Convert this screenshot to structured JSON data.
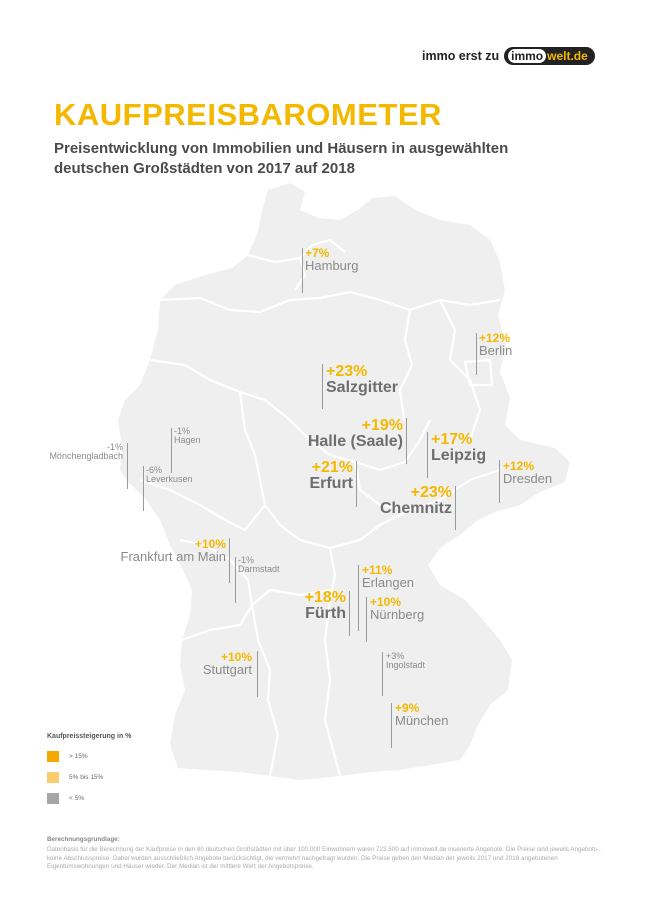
{
  "brand": {
    "prefix": "immo erst zu",
    "logo_a": "immo",
    "logo_b": "welt.de"
  },
  "title": "KAUFPREISBAROMETER",
  "subtitle": "Preisentwicklung von Immobilien und Häusern in ausgewählten deutschen Großstädten von 2017 auf 2018",
  "colors": {
    "high": "#f5a800",
    "mid": "#f9cd6d",
    "low": "#a6a6a6",
    "map": "#efefef",
    "border": "#ffffff"
  },
  "cities": {
    "hamburg": {
      "pct": "+7%",
      "name": "Hamburg"
    },
    "berlin": {
      "pct": "+12%",
      "name": "Berlin"
    },
    "salzgitter": {
      "pct": "+23%",
      "name": "Salzgitter"
    },
    "halle": {
      "pct": "+19%",
      "name": "Halle (Saale)"
    },
    "leipzig": {
      "pct": "+17%",
      "name": "Leipzig"
    },
    "dresden": {
      "pct": "+12%",
      "name": "Dresden"
    },
    "erfurt": {
      "pct": "+21%",
      "name": "Erfurt"
    },
    "chemnitz": {
      "pct": "+23%",
      "name": "Chemnitz"
    },
    "moenchengladbach": {
      "pct": "-1%",
      "name": "Mönchengladbach"
    },
    "hagen": {
      "pct": "-1%",
      "name": "Hagen"
    },
    "leverkusen": {
      "pct": "-6%",
      "name": "Leverkusen"
    },
    "frankfurt": {
      "pct": "+10%",
      "name": "Frankfurt am Main"
    },
    "darmstadt": {
      "pct": "-1%",
      "name": "Darmstadt"
    },
    "erlangen": {
      "pct": "+11%",
      "name": "Erlangen"
    },
    "fuerth": {
      "pct": "+18%",
      "name": "Fürth"
    },
    "nuernberg": {
      "pct": "+10%",
      "name": "Nürnberg"
    },
    "stuttgart": {
      "pct": "+10%",
      "name": "Stuttgart"
    },
    "ingolstadt": {
      "pct": "+3%",
      "name": "Ingolstadt"
    },
    "muenchen": {
      "pct": "+9%",
      "name": "München"
    }
  },
  "legend": {
    "title": "Kaufpreissteigerung in %",
    "items": [
      {
        "label": "> 15%"
      },
      {
        "label": "5% bis 15%"
      },
      {
        "label": "< 5%"
      }
    ]
  },
  "footnote": {
    "heading": "Berechnungsgrundlage:",
    "text": "Datenbasis für die Berechnung der Kaufpreise in den 80 deutschen Großstädten mit über 100.000 Einwohnern waren 723.500 auf immowelt.de inserierte Angebote. Die Preise sind jeweils Angebots-, keine Abschlusspreise. Dabei wurden ausschließlich Angebote berücksichtigt, die vermehrt nachgefragt wurden. Die Preise geben den Median der jeweils 2017 und 2018 angebotenen Eigentumswohnungen und Häuser wieder. Der Median ist der mittlere Wert der Angebotspreise."
  }
}
